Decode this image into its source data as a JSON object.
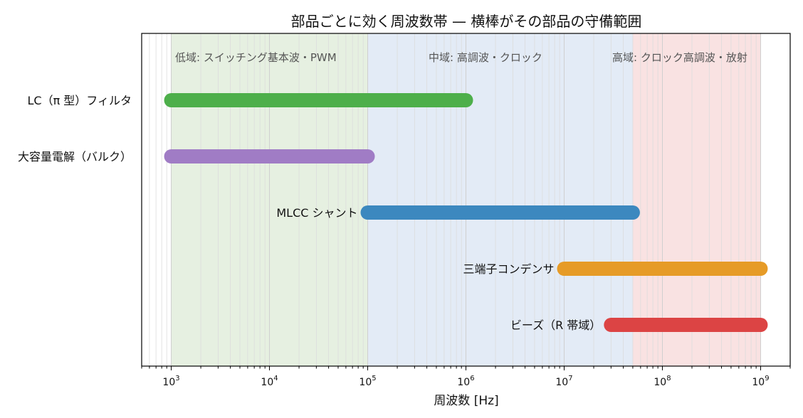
{
  "chart_data": {
    "type": "bar",
    "orientation": "horizontal",
    "title": "部品ごとに効く周波数帯 — 横棒がその部品の守備範囲",
    "xlabel": "周波数 [Hz]",
    "xscale": "log",
    "xlim": [
      500,
      2000000000
    ],
    "grid": "vertical minor lines",
    "bands": [
      {
        "label": "低域: スイッチング基本波・PWM",
        "from": 1000,
        "to": 100000,
        "color": "#e6f0e1"
      },
      {
        "label": "中域: 高調波・クロック",
        "from": 100000,
        "to": 50000000,
        "color": "#e3ebf6"
      },
      {
        "label": "高域: クロック高調波・放射",
        "from": 50000000,
        "to": 1000000000,
        "color": "#f9e2e2"
      }
    ],
    "x_ticks": [
      {
        "base": "10",
        "exp": "3",
        "value": 1000
      },
      {
        "base": "10",
        "exp": "4",
        "value": 10000
      },
      {
        "base": "10",
        "exp": "5",
        "value": 100000
      },
      {
        "base": "10",
        "exp": "6",
        "value": 1000000
      },
      {
        "base": "10",
        "exp": "7",
        "value": 10000000
      },
      {
        "base": "10",
        "exp": "8",
        "value": 100000000
      },
      {
        "base": "10",
        "exp": "9",
        "value": 1000000000
      }
    ],
    "categories": [
      "LC（π 型）フィルタ",
      "大容量電解（バルク）",
      "MLCC シャント",
      "三端子コンデンサ",
      "ビーズ（R 帯域）"
    ],
    "ranges": [
      {
        "from": 1000,
        "to": 1000000,
        "color": "#4daf4a"
      },
      {
        "from": 1000,
        "to": 100000,
        "color": "#a07cc5"
      },
      {
        "from": 100000,
        "to": 50000000,
        "color": "#3c88bf"
      },
      {
        "from": 10000000,
        "to": 1000000000,
        "color": "#e69b27"
      },
      {
        "from": 30000000,
        "to": 1000000000,
        "color": "#dc4444"
      }
    ]
  }
}
